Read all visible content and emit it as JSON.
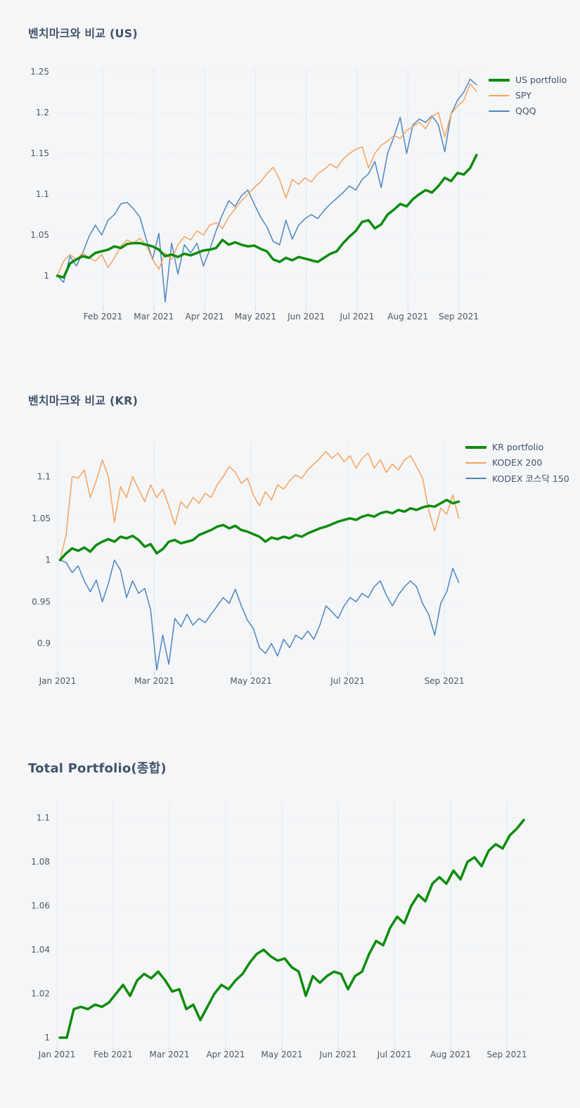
{
  "page": {
    "background_color": "#f4f6f8"
  },
  "chart_data": [
    {
      "type": "line",
      "title": "벤치마크와 비교 (US)",
      "x_unit": "months from 2021-01-01",
      "x_range": [
        0.08,
        8.45
      ],
      "y_range": [
        0.9612,
        1.2543
      ],
      "grid": true,
      "legend_position": "outside-top-right",
      "x_ticks": [
        {
          "x": 1,
          "label": "Feb 2021"
        },
        {
          "x": 2,
          "label": "Mar 2021"
        },
        {
          "x": 3,
          "label": "Apr 2021"
        },
        {
          "x": 4,
          "label": "May 2021"
        },
        {
          "x": 5,
          "label": "Jun 2021"
        },
        {
          "x": 6,
          "label": "Jul 2021"
        },
        {
          "x": 7,
          "label": "Aug 2021"
        },
        {
          "x": 8,
          "label": "Sep 2021"
        }
      ],
      "y_ticks": [
        {
          "y": 1,
          "label": "1"
        },
        {
          "y": 1.05,
          "label": "1.05"
        },
        {
          "y": 1.1,
          "label": "1.1"
        },
        {
          "y": 1.15,
          "label": "1.15"
        },
        {
          "y": 1.2,
          "label": "1.2"
        },
        {
          "y": 1.25,
          "label": "1.25"
        }
      ],
      "series": [
        {
          "name": "US portfolio",
          "color": "#0d8c0d",
          "line_width": 3.5,
          "x_start": 0.1,
          "x_step": 0.125,
          "values": [
            1.0,
            0.998,
            1.015,
            1.02,
            1.024,
            1.022,
            1.028,
            1.03,
            1.032,
            1.036,
            1.034,
            1.039,
            1.04,
            1.04,
            1.038,
            1.036,
            1.032,
            1.024,
            1.026,
            1.023,
            1.027,
            1.025,
            1.028,
            1.031,
            1.032,
            1.034,
            1.044,
            1.038,
            1.041,
            1.038,
            1.036,
            1.037,
            1.033,
            1.03,
            1.02,
            1.017,
            1.022,
            1.019,
            1.023,
            1.021,
            1.019,
            1.017,
            1.022,
            1.027,
            1.03,
            1.04,
            1.048,
            1.055,
            1.066,
            1.068,
            1.058,
            1.063,
            1.075,
            1.081,
            1.088,
            1.085,
            1.094,
            1.1,
            1.105,
            1.102,
            1.11,
            1.12,
            1.116,
            1.126,
            1.124,
            1.132,
            1.148
          ]
        },
        {
          "name": "SPY",
          "color": "#f7a35c",
          "line_width": 1.5,
          "x_start": 0.1,
          "x_step": 0.125,
          "values": [
            1.0,
            1.018,
            1.026,
            1.02,
            1.028,
            1.022,
            1.018,
            1.026,
            1.01,
            1.022,
            1.036,
            1.044,
            1.04,
            1.046,
            1.038,
            1.02,
            1.008,
            1.028,
            1.02,
            1.038,
            1.048,
            1.044,
            1.055,
            1.05,
            1.062,
            1.065,
            1.058,
            1.072,
            1.082,
            1.092,
            1.1,
            1.108,
            1.115,
            1.125,
            1.133,
            1.118,
            1.095,
            1.118,
            1.112,
            1.12,
            1.115,
            1.125,
            1.13,
            1.137,
            1.132,
            1.143,
            1.15,
            1.155,
            1.158,
            1.132,
            1.15,
            1.16,
            1.165,
            1.172,
            1.168,
            1.178,
            1.183,
            1.188,
            1.18,
            1.195,
            1.2,
            1.17,
            1.198,
            1.208,
            1.215,
            1.235,
            1.226
          ]
        },
        {
          "name": "QQQ",
          "color": "#4e86bf",
          "line_width": 1.5,
          "x_start": 0.1,
          "x_step": 0.125,
          "values": [
            1.0,
            0.992,
            1.024,
            1.012,
            1.028,
            1.048,
            1.062,
            1.05,
            1.068,
            1.075,
            1.088,
            1.09,
            1.082,
            1.072,
            1.045,
            1.02,
            1.052,
            0.968,
            1.04,
            1.002,
            1.038,
            1.028,
            1.04,
            1.012,
            1.032,
            1.055,
            1.075,
            1.092,
            1.085,
            1.098,
            1.105,
            1.088,
            1.072,
            1.06,
            1.042,
            1.038,
            1.068,
            1.045,
            1.062,
            1.07,
            1.075,
            1.07,
            1.08,
            1.088,
            1.095,
            1.102,
            1.11,
            1.105,
            1.118,
            1.125,
            1.14,
            1.108,
            1.15,
            1.17,
            1.194,
            1.15,
            1.185,
            1.192,
            1.188,
            1.196,
            1.185,
            1.152,
            1.198,
            1.215,
            1.225,
            1.241,
            1.234
          ]
        }
      ]
    },
    {
      "type": "line",
      "title": "벤치마크와 비교 (KR)",
      "x_unit": "months from 2021-01-01",
      "x_range": [
        0,
        8.407
      ],
      "y_range": [
        0.866,
        1.1417
      ],
      "grid": true,
      "legend_position": "outside-top-right",
      "x_ticks": [
        {
          "x": 0,
          "label": "Jan 2021"
        },
        {
          "x": 2,
          "label": "Mar 2021"
        },
        {
          "x": 4,
          "label": "May 2021"
        },
        {
          "x": 6,
          "label": "Jul 2021"
        },
        {
          "x": 8,
          "label": "Sep 2021"
        }
      ],
      "y_ticks": [
        {
          "y": 0.9,
          "label": "0.9"
        },
        {
          "y": 0.95,
          "label": "0.95"
        },
        {
          "y": 1,
          "label": "1"
        },
        {
          "y": 1.05,
          "label": "1.05"
        },
        {
          "y": 1.1,
          "label": "1.1"
        }
      ],
      "series": [
        {
          "name": "KR portfolio",
          "color": "#0d8c0d",
          "line_width": 3.5,
          "x_start": 0.05,
          "x_step": 0.125,
          "values": [
            1.0,
            1.008,
            1.014,
            1.011,
            1.015,
            1.01,
            1.018,
            1.022,
            1.025,
            1.022,
            1.028,
            1.026,
            1.029,
            1.024,
            1.016,
            1.019,
            1.008,
            1.013,
            1.022,
            1.024,
            1.02,
            1.022,
            1.024,
            1.03,
            1.033,
            1.036,
            1.04,
            1.042,
            1.038,
            1.041,
            1.036,
            1.034,
            1.031,
            1.028,
            1.022,
            1.027,
            1.025,
            1.028,
            1.026,
            1.03,
            1.028,
            1.032,
            1.035,
            1.038,
            1.04,
            1.043,
            1.046,
            1.048,
            1.05,
            1.048,
            1.052,
            1.054,
            1.052,
            1.056,
            1.058,
            1.056,
            1.06,
            1.058,
            1.062,
            1.06,
            1.063,
            1.065,
            1.064,
            1.068,
            1.072,
            1.068,
            1.07
          ]
        },
        {
          "name": "KODEX 200",
          "color": "#f7a35c",
          "line_width": 1.5,
          "x_start": 0.05,
          "x_step": 0.125,
          "values": [
            1.0,
            1.03,
            1.1,
            1.098,
            1.108,
            1.075,
            1.095,
            1.12,
            1.1,
            1.045,
            1.088,
            1.075,
            1.1,
            1.085,
            1.07,
            1.09,
            1.075,
            1.085,
            1.065,
            1.042,
            1.07,
            1.062,
            1.075,
            1.068,
            1.08,
            1.075,
            1.09,
            1.1,
            1.112,
            1.105,
            1.092,
            1.098,
            1.078,
            1.065,
            1.082,
            1.072,
            1.09,
            1.085,
            1.095,
            1.102,
            1.098,
            1.108,
            1.115,
            1.122,
            1.13,
            1.122,
            1.128,
            1.118,
            1.125,
            1.11,
            1.122,
            1.128,
            1.11,
            1.12,
            1.105,
            1.115,
            1.108,
            1.12,
            1.125,
            1.112,
            1.098,
            1.06,
            1.035,
            1.062,
            1.055,
            1.078,
            1.05
          ]
        },
        {
          "name": "KODEX 코스닥 150",
          "color": "#4e86bf",
          "line_width": 1.5,
          "x_start": 0.05,
          "x_step": 0.125,
          "values": [
            1.0,
            0.997,
            0.985,
            0.993,
            0.975,
            0.962,
            0.976,
            0.95,
            0.972,
            1.0,
            0.988,
            0.955,
            0.975,
            0.96,
            0.966,
            0.94,
            0.868,
            0.91,
            0.875,
            0.93,
            0.92,
            0.935,
            0.922,
            0.93,
            0.925,
            0.935,
            0.945,
            0.955,
            0.948,
            0.965,
            0.945,
            0.928,
            0.918,
            0.895,
            0.888,
            0.9,
            0.885,
            0.905,
            0.895,
            0.91,
            0.905,
            0.915,
            0.905,
            0.922,
            0.945,
            0.938,
            0.93,
            0.945,
            0.955,
            0.95,
            0.96,
            0.955,
            0.968,
            0.975,
            0.958,
            0.945,
            0.958,
            0.968,
            0.975,
            0.968,
            0.948,
            0.935,
            0.91,
            0.948,
            0.962,
            0.99,
            0.973
          ]
        }
      ]
    },
    {
      "type": "line",
      "title": "Total Portfolio(종합)",
      "x_unit": "months from 2021-01-01",
      "x_range": [
        0,
        8.3
      ],
      "y_range": [
        0.99584,
        1.1072
      ],
      "grid": true,
      "legend_position": "none",
      "x_ticks": [
        {
          "x": 0,
          "label": "Jan 2021"
        },
        {
          "x": 1,
          "label": "Feb 2021"
        },
        {
          "x": 2,
          "label": "Mar 2021"
        },
        {
          "x": 3,
          "label": "Apr 2021"
        },
        {
          "x": 4,
          "label": "May 2021"
        },
        {
          "x": 5,
          "label": "Jun 2021"
        },
        {
          "x": 6,
          "label": "Jul 2021"
        },
        {
          "x": 7,
          "label": "Aug 2021"
        },
        {
          "x": 8,
          "label": "Sep 2021"
        }
      ],
      "y_ticks": [
        {
          "y": 1,
          "label": "1"
        },
        {
          "y": 1.02,
          "label": "1.02"
        },
        {
          "y": 1.04,
          "label": "1.04"
        },
        {
          "y": 1.06,
          "label": "1.06"
        },
        {
          "y": 1.08,
          "label": "1.08"
        },
        {
          "y": 1.1,
          "label": "1.1"
        }
      ],
      "series": [
        {
          "name": "Total portfolio",
          "color": "#0d8c0d",
          "line_width": 3.5,
          "x_start": 0.05,
          "x_step": 0.125,
          "values": [
            1.0,
            1.0,
            1.013,
            1.014,
            1.013,
            1.015,
            1.014,
            1.016,
            1.02,
            1.024,
            1.019,
            1.026,
            1.029,
            1.027,
            1.03,
            1.026,
            1.021,
            1.022,
            1.013,
            1.015,
            1.008,
            1.014,
            1.02,
            1.024,
            1.022,
            1.026,
            1.029,
            1.034,
            1.038,
            1.04,
            1.037,
            1.035,
            1.036,
            1.032,
            1.03,
            1.019,
            1.028,
            1.025,
            1.028,
            1.03,
            1.029,
            1.022,
            1.028,
            1.03,
            1.038,
            1.044,
            1.042,
            1.05,
            1.055,
            1.052,
            1.06,
            1.065,
            1.062,
            1.07,
            1.073,
            1.07,
            1.076,
            1.072,
            1.08,
            1.082,
            1.078,
            1.085,
            1.088,
            1.086,
            1.092,
            1.095,
            1.099
          ]
        }
      ]
    }
  ],
  "style": {
    "grid_v_color": "#e4e8ec",
    "grid_h_color": "#d9dee3",
    "tick_color": "#c9ced6",
    "tick_label_color": "#4c5866",
    "title_color": "#42536b"
  }
}
